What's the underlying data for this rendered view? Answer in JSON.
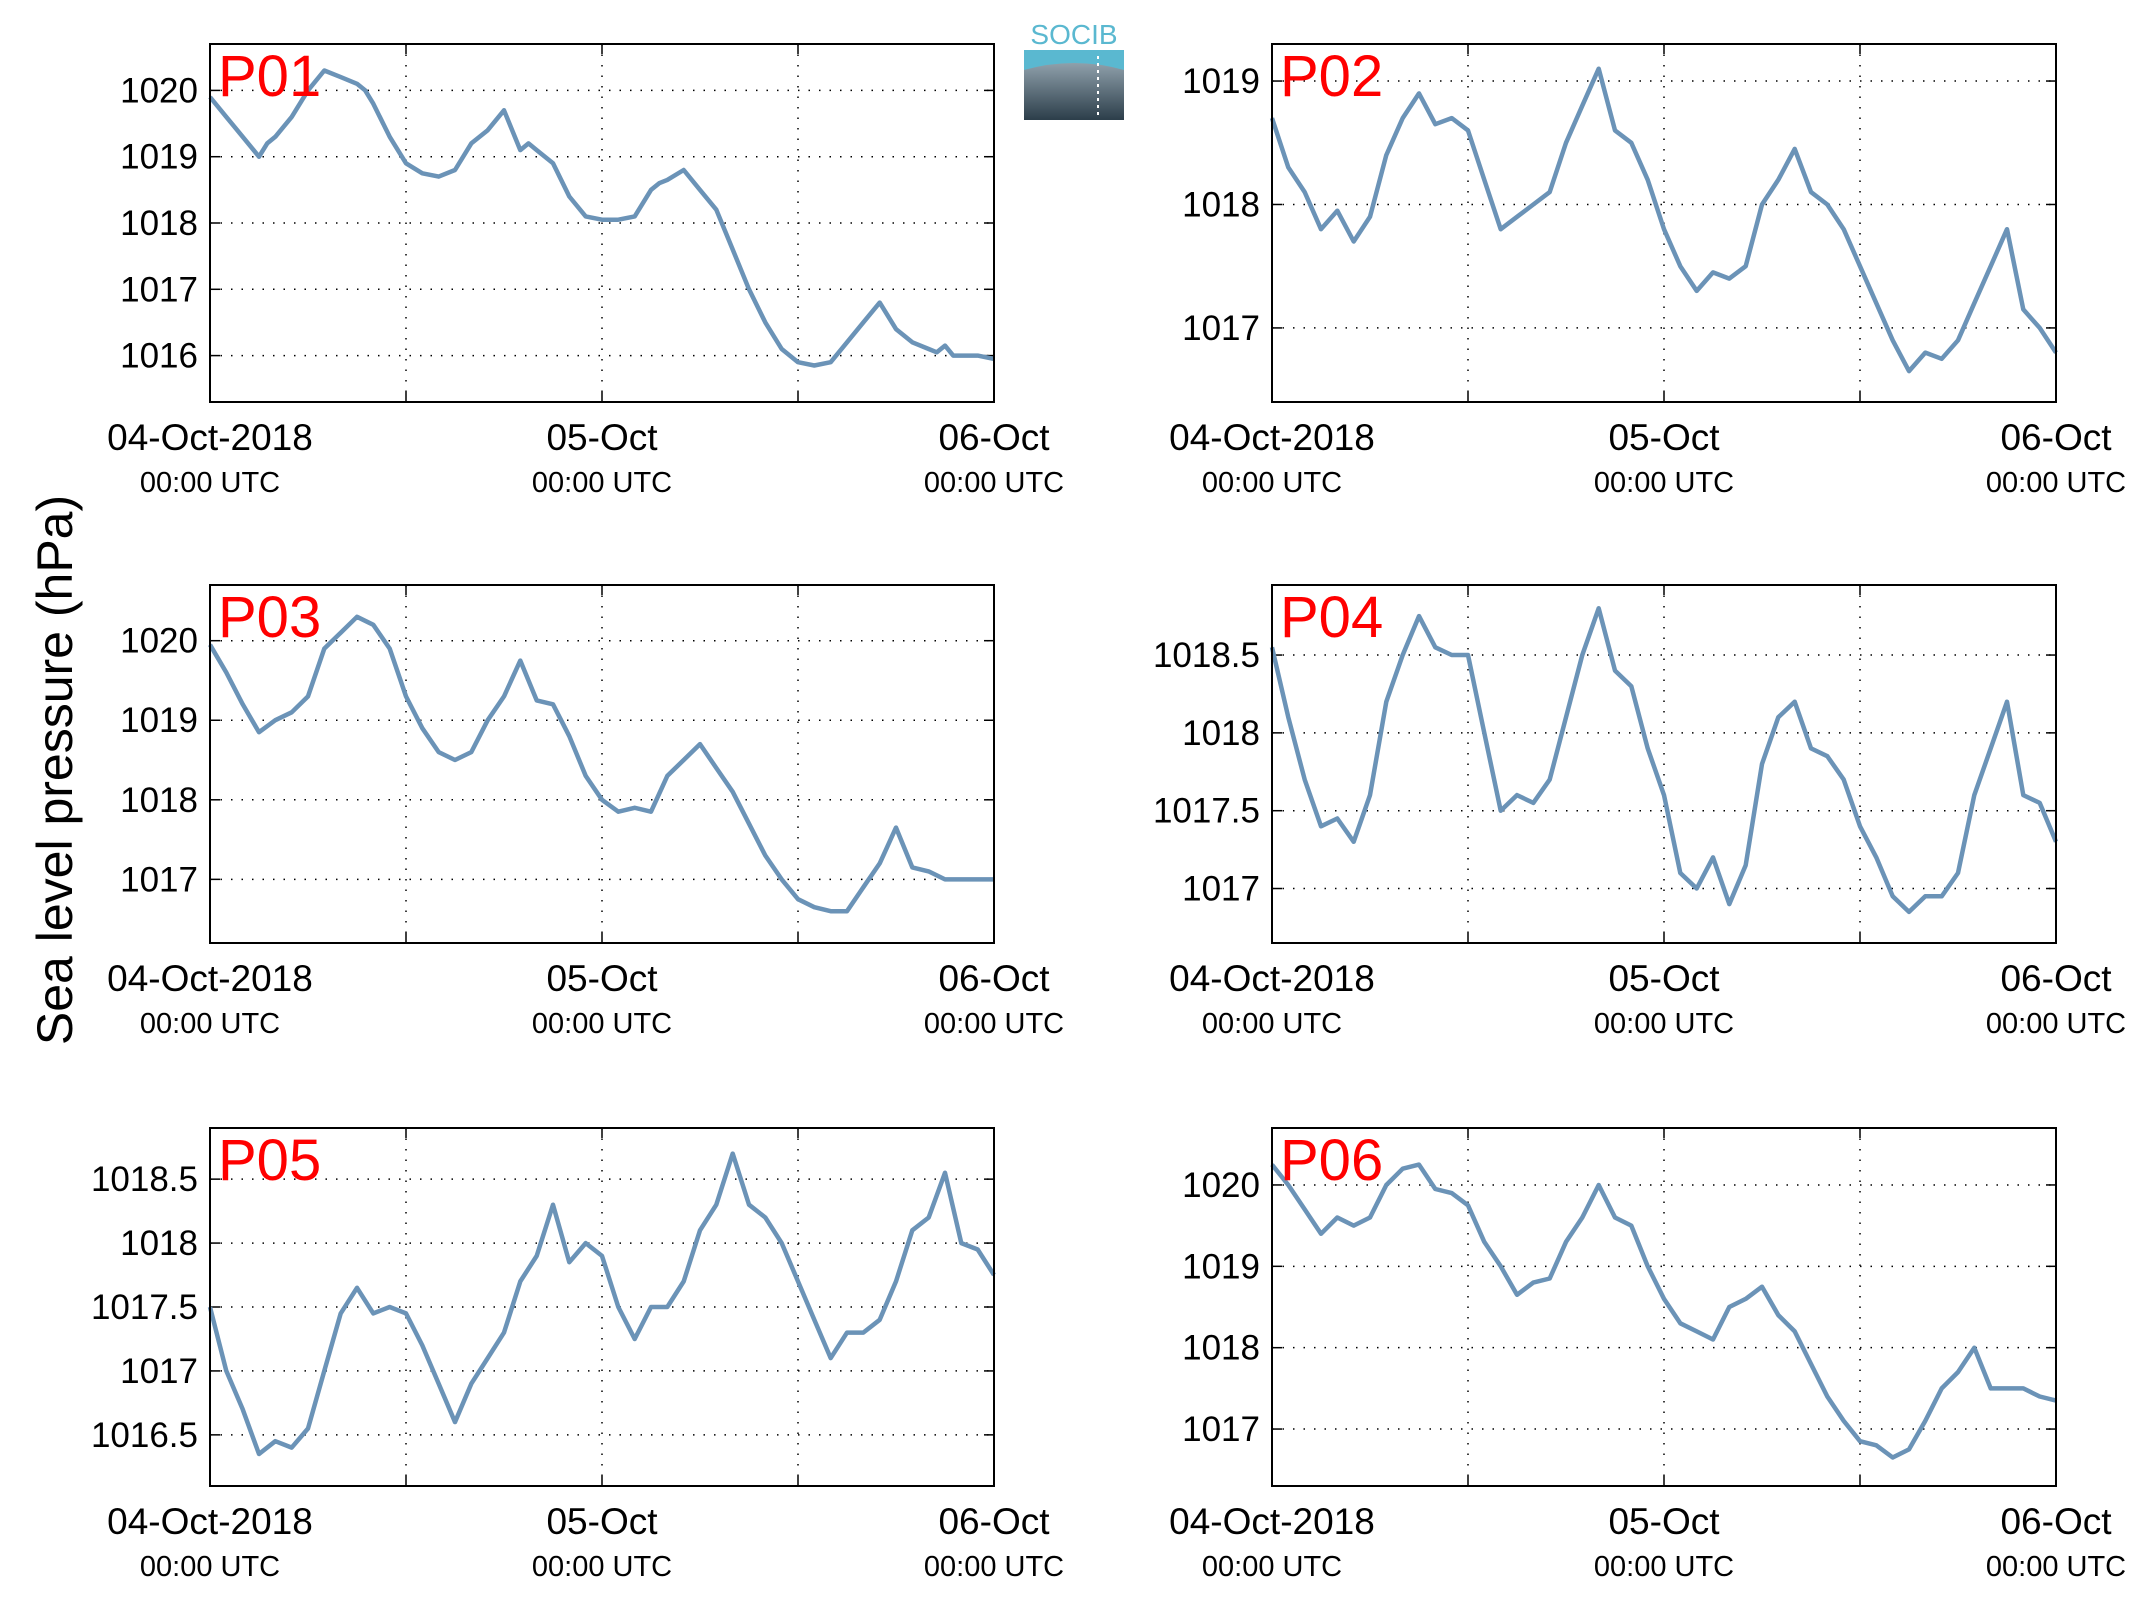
{
  "figure": {
    "ylabel": "Sea level pressure (hPa)",
    "logo_text": "SOCIB",
    "line_color": "#6b93b7",
    "panel_label_color": "#ff0000"
  },
  "chart_data": [
    {
      "type": "line",
      "panel_label": "P01",
      "x_ticks": [
        {
          "label": "04-Oct-2018",
          "sub": "00:00 UTC"
        },
        {
          "label": "05-Oct",
          "sub": "00:00 UTC"
        },
        {
          "label": "06-Oct",
          "sub": "00:00 UTC"
        }
      ],
      "x_range_hours": [
        0,
        48
      ],
      "ylim": [
        1015.3,
        1020.7
      ],
      "yticks": [
        1016,
        1017,
        1018,
        1019,
        1020
      ],
      "grid": true,
      "series": [
        {
          "x": [
            0,
            1,
            2,
            3,
            3.5,
            4,
            5,
            6,
            7,
            8,
            9,
            9.5,
            10,
            11,
            12,
            13,
            14,
            15,
            16,
            17,
            18,
            19,
            19.5,
            20,
            21,
            22,
            23,
            24,
            25,
            26,
            27,
            27.5,
            28,
            29,
            30,
            31,
            32,
            33,
            34,
            35,
            36,
            37,
            38,
            39,
            40,
            41,
            42,
            43,
            44,
            44.5,
            45,
            45.5,
            46,
            47,
            48
          ],
          "y": [
            1019.9,
            1019.6,
            1019.3,
            1019.0,
            1019.2,
            1019.3,
            1019.6,
            1020.0,
            1020.3,
            1020.2,
            1020.1,
            1020.0,
            1019.8,
            1019.3,
            1018.9,
            1018.75,
            1018.7,
            1018.8,
            1019.2,
            1019.4,
            1019.7,
            1019.1,
            1019.2,
            1019.1,
            1018.9,
            1018.4,
            1018.1,
            1018.05,
            1018.05,
            1018.1,
            1018.5,
            1018.6,
            1018.65,
            1018.8,
            1018.5,
            1018.2,
            1017.6,
            1017.0,
            1016.5,
            1016.1,
            1015.9,
            1015.85,
            1015.9,
            1016.2,
            1016.5,
            1016.8,
            1016.4,
            1016.2,
            1016.1,
            1016.05,
            1016.15,
            1016.0,
            1016.0,
            1016.0,
            1015.95
          ]
        }
      ]
    },
    {
      "type": "line",
      "panel_label": "P02",
      "x_ticks": [
        {
          "label": "04-Oct-2018",
          "sub": "00:00 UTC"
        },
        {
          "label": "05-Oct",
          "sub": "00:00 UTC"
        },
        {
          "label": "06-Oct",
          "sub": "00:00 UTC"
        }
      ],
      "x_range_hours": [
        0,
        48
      ],
      "ylim": [
        1016.4,
        1019.3
      ],
      "yticks": [
        1017,
        1018,
        1019
      ],
      "grid": true,
      "series": [
        {
          "x": [
            0,
            1,
            2,
            3,
            4,
            5,
            6,
            7,
            8,
            9,
            10,
            11,
            12,
            13,
            14,
            15,
            16,
            17,
            18,
            19,
            20,
            21,
            22,
            23,
            24,
            25,
            26,
            27,
            28,
            29,
            30,
            31,
            32,
            33,
            34,
            35,
            36,
            37,
            38,
            39,
            40,
            41,
            42,
            43,
            44,
            45,
            46,
            47,
            48
          ],
          "y": [
            1018.7,
            1018.3,
            1018.1,
            1017.8,
            1017.95,
            1017.7,
            1017.9,
            1018.4,
            1018.7,
            1018.9,
            1018.65,
            1018.7,
            1018.6,
            1018.2,
            1017.8,
            1017.9,
            1018.0,
            1018.1,
            1018.5,
            1018.8,
            1019.1,
            1018.6,
            1018.5,
            1018.2,
            1017.8,
            1017.5,
            1017.3,
            1017.45,
            1017.4,
            1017.5,
            1018.0,
            1018.2,
            1018.45,
            1018.1,
            1018.0,
            1017.8,
            1017.5,
            1017.2,
            1016.9,
            1016.65,
            1016.8,
            1016.75,
            1016.9,
            1017.2,
            1017.5,
            1017.8,
            1017.15,
            1017.0,
            1016.8
          ]
        }
      ]
    },
    {
      "type": "line",
      "panel_label": "P03",
      "x_ticks": [
        {
          "label": "04-Oct-2018",
          "sub": "00:00 UTC"
        },
        {
          "label": "05-Oct",
          "sub": "00:00 UTC"
        },
        {
          "label": "06-Oct",
          "sub": "00:00 UTC"
        }
      ],
      "x_range_hours": [
        0,
        48
      ],
      "ylim": [
        1016.2,
        1020.7
      ],
      "yticks": [
        1017,
        1018,
        1019,
        1020
      ],
      "grid": true,
      "series": [
        {
          "x": [
            0,
            1,
            2,
            3,
            4,
            5,
            6,
            7,
            8,
            9,
            10,
            11,
            12,
            13,
            14,
            15,
            16,
            17,
            18,
            19,
            20,
            21,
            22,
            23,
            24,
            25,
            26,
            27,
            28,
            29,
            30,
            31,
            32,
            33,
            34,
            35,
            36,
            37,
            38,
            39,
            40,
            41,
            42,
            43,
            44,
            45,
            46,
            47,
            48
          ],
          "y": [
            1019.95,
            1019.6,
            1019.2,
            1018.85,
            1019.0,
            1019.1,
            1019.3,
            1019.9,
            1020.1,
            1020.3,
            1020.2,
            1019.9,
            1019.3,
            1018.9,
            1018.6,
            1018.5,
            1018.6,
            1019.0,
            1019.3,
            1019.75,
            1019.25,
            1019.2,
            1018.8,
            1018.3,
            1018.0,
            1017.85,
            1017.9,
            1017.85,
            1018.3,
            1018.5,
            1018.7,
            1018.4,
            1018.1,
            1017.7,
            1017.3,
            1017.0,
            1016.75,
            1016.65,
            1016.6,
            1016.6,
            1016.9,
            1017.2,
            1017.65,
            1017.15,
            1017.1,
            1017.0,
            1017.0,
            1017.0,
            1017.0
          ]
        }
      ]
    },
    {
      "type": "line",
      "panel_label": "P04",
      "x_ticks": [
        {
          "label": "04-Oct-2018",
          "sub": "00:00 UTC"
        },
        {
          "label": "05-Oct",
          "sub": "00:00 UTC"
        },
        {
          "label": "06-Oct",
          "sub": "00:00 UTC"
        }
      ],
      "x_range_hours": [
        0,
        48
      ],
      "ylim": [
        1016.65,
        1018.95
      ],
      "yticks": [
        1017,
        1017.5,
        1018,
        1018.5
      ],
      "grid": true,
      "series": [
        {
          "x": [
            0,
            1,
            2,
            3,
            4,
            5,
            6,
            7,
            8,
            9,
            10,
            11,
            12,
            13,
            14,
            15,
            16,
            17,
            18,
            19,
            20,
            21,
            22,
            23,
            24,
            25,
            26,
            27,
            28,
            29,
            30,
            31,
            32,
            33,
            34,
            35,
            36,
            37,
            38,
            39,
            40,
            41,
            42,
            43,
            44,
            45,
            46,
            47,
            48
          ],
          "y": [
            1018.55,
            1018.1,
            1017.7,
            1017.4,
            1017.45,
            1017.3,
            1017.6,
            1018.2,
            1018.5,
            1018.75,
            1018.55,
            1018.5,
            1018.5,
            1018.0,
            1017.5,
            1017.6,
            1017.55,
            1017.7,
            1018.1,
            1018.5,
            1018.8,
            1018.4,
            1018.3,
            1017.9,
            1017.6,
            1017.1,
            1017.0,
            1017.2,
            1016.9,
            1017.15,
            1017.8,
            1018.1,
            1018.2,
            1017.9,
            1017.85,
            1017.7,
            1017.4,
            1017.2,
            1016.95,
            1016.85,
            1016.95,
            1016.95,
            1017.1,
            1017.6,
            1017.9,
            1018.2,
            1017.6,
            1017.55,
            1017.3
          ]
        }
      ]
    },
    {
      "type": "line",
      "panel_label": "P05",
      "x_ticks": [
        {
          "label": "04-Oct-2018",
          "sub": "00:00 UTC"
        },
        {
          "label": "05-Oct",
          "sub": "00:00 UTC"
        },
        {
          "label": "06-Oct",
          "sub": "00:00 UTC"
        }
      ],
      "x_range_hours": [
        0,
        48
      ],
      "ylim": [
        1016.1,
        1018.9
      ],
      "yticks": [
        1016.5,
        1017,
        1017.5,
        1018,
        1018.5
      ],
      "grid": true,
      "series": [
        {
          "x": [
            0,
            1,
            2,
            3,
            4,
            5,
            6,
            7,
            8,
            9,
            10,
            11,
            12,
            13,
            14,
            15,
            16,
            17,
            18,
            19,
            20,
            21,
            22,
            23,
            24,
            25,
            26,
            27,
            28,
            29,
            30,
            31,
            32,
            33,
            34,
            35,
            36,
            37,
            38,
            39,
            40,
            41,
            42,
            43,
            44,
            45,
            46,
            47,
            48
          ],
          "y": [
            1017.5,
            1017.0,
            1016.7,
            1016.35,
            1016.45,
            1016.4,
            1016.55,
            1017.0,
            1017.45,
            1017.65,
            1017.45,
            1017.5,
            1017.45,
            1017.2,
            1016.9,
            1016.6,
            1016.9,
            1017.1,
            1017.3,
            1017.7,
            1017.9,
            1018.3,
            1017.85,
            1018.0,
            1017.9,
            1017.5,
            1017.25,
            1017.5,
            1017.5,
            1017.7,
            1018.1,
            1018.3,
            1018.7,
            1018.3,
            1018.2,
            1018.0,
            1017.7,
            1017.4,
            1017.1,
            1017.3,
            1017.3,
            1017.4,
            1017.7,
            1018.1,
            1018.2,
            1018.55,
            1018.0,
            1017.95,
            1017.75
          ]
        }
      ]
    },
    {
      "type": "line",
      "panel_label": "P06",
      "x_ticks": [
        {
          "label": "04-Oct-2018",
          "sub": "00:00 UTC"
        },
        {
          "label": "05-Oct",
          "sub": "00:00 UTC"
        },
        {
          "label": "06-Oct",
          "sub": "00:00 UTC"
        }
      ],
      "x_range_hours": [
        0,
        48
      ],
      "ylim": [
        1016.3,
        1020.7
      ],
      "yticks": [
        1017,
        1018,
        1019,
        1020
      ],
      "grid": true,
      "series": [
        {
          "x": [
            0,
            1,
            2,
            3,
            4,
            5,
            6,
            7,
            8,
            9,
            10,
            11,
            12,
            13,
            14,
            15,
            16,
            17,
            18,
            19,
            20,
            21,
            22,
            23,
            24,
            25,
            26,
            27,
            28,
            29,
            30,
            31,
            32,
            33,
            34,
            35,
            36,
            37,
            38,
            39,
            40,
            41,
            42,
            43,
            44,
            45,
            46,
            47,
            48
          ],
          "y": [
            1020.25,
            1020.0,
            1019.7,
            1019.4,
            1019.6,
            1019.5,
            1019.6,
            1020.0,
            1020.2,
            1020.25,
            1019.95,
            1019.9,
            1019.75,
            1019.3,
            1019.0,
            1018.65,
            1018.8,
            1018.85,
            1019.3,
            1019.6,
            1020.0,
            1019.6,
            1019.5,
            1019.0,
            1018.6,
            1018.3,
            1018.2,
            1018.1,
            1018.5,
            1018.6,
            1018.75,
            1018.4,
            1018.2,
            1017.8,
            1017.4,
            1017.1,
            1016.85,
            1016.8,
            1016.65,
            1016.75,
            1017.1,
            1017.5,
            1017.7,
            1018.0,
            1017.5,
            1017.5,
            1017.5,
            1017.4,
            1017.35
          ]
        }
      ]
    }
  ]
}
